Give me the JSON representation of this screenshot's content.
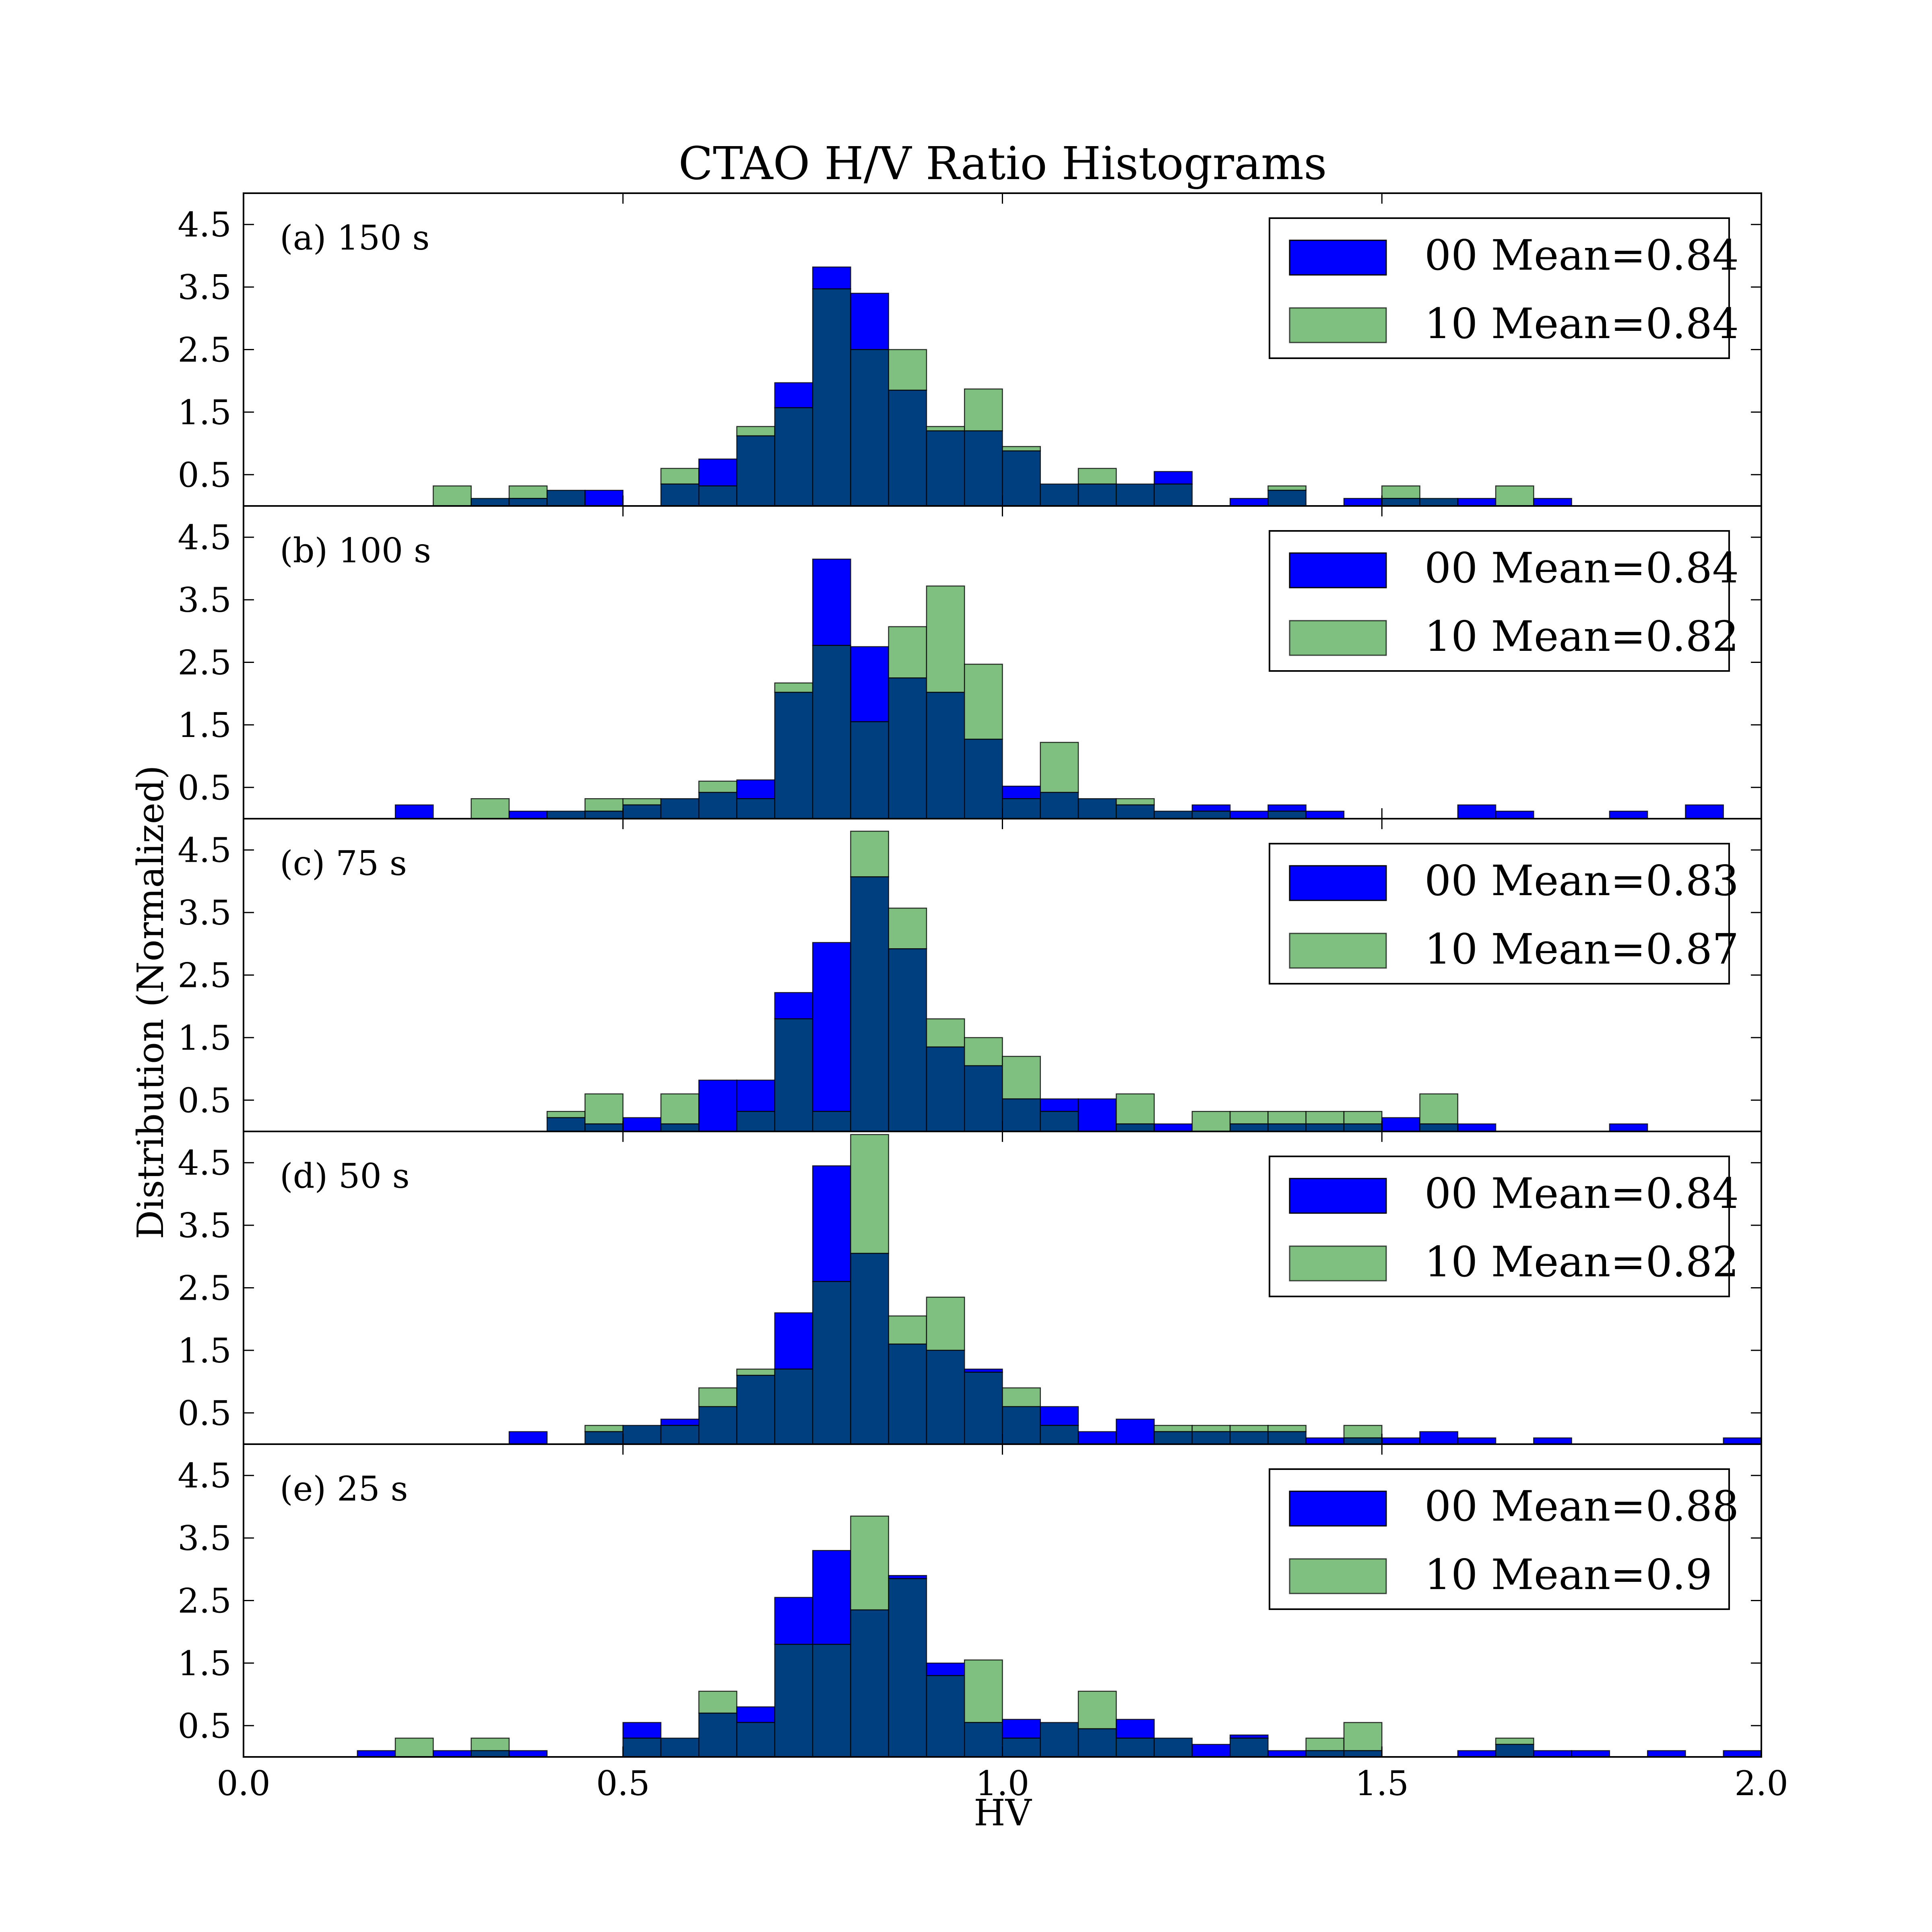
{
  "figure": {
    "title": "CTAO H/V Ratio Histograms",
    "xlabel": "HV",
    "ylabel": "Distribution (Normalized)"
  },
  "colors": {
    "series_00": "#0000ff",
    "series_10": "#7fbf7f",
    "overlap": "#003f7f",
    "edge": "#000000",
    "background": "#ffffff"
  },
  "chart_data": {
    "type": "bar",
    "subtype": "overlaid-histogram",
    "xlim": [
      0.0,
      2.0
    ],
    "ylim": [
      0,
      5
    ],
    "x_ticks": [
      "0.0",
      "0.5",
      "1.0",
      "1.5",
      "2.0"
    ],
    "y_ticks": [
      "0.5",
      "1.5",
      "2.5",
      "3.5",
      "4.5"
    ],
    "bin_width": 0.05,
    "bin_start": 0.0,
    "series_names": [
      "00",
      "10"
    ],
    "panels": [
      {
        "label": "(a) 150 s",
        "legend": [
          "00 Mean=0.84",
          "10 Mean=0.84"
        ],
        "series": [
          {
            "name": "00",
            "values": [
              0,
              0,
              0,
              0,
              0,
              0,
              0.12,
              0.12,
              0.25,
              0.25,
              0,
              0.35,
              0.75,
              1.12,
              1.97,
              3.82,
              3.4,
              1.85,
              1.2,
              1.2,
              0.88,
              0.35,
              0.35,
              0.35,
              0.55,
              0,
              0.12,
              0.25,
              0,
              0.12,
              0.12,
              0.12,
              0.12,
              0,
              0.12,
              0,
              0,
              0,
              0,
              0
            ]
          },
          {
            "name": "10",
            "values": [
              0,
              0,
              0,
              0,
              0,
              0.32,
              0.12,
              0.32,
              0.25,
              0,
              0,
              0.6,
              0.32,
              1.27,
              1.57,
              3.47,
              2.5,
              2.5,
              1.27,
              1.87,
              0.95,
              0.35,
              0.6,
              0.35,
              0.35,
              0,
              0,
              0.32,
              0,
              0,
              0.32,
              0.12,
              0,
              0.32,
              0,
              0,
              0,
              0,
              0,
              0
            ]
          }
        ]
      },
      {
        "label": "(b) 100 s",
        "legend": [
          "00 Mean=0.84",
          "10 Mean=0.82"
        ],
        "series": [
          {
            "name": "00",
            "values": [
              0,
              0,
              0,
              0,
              0.22,
              0,
              0,
              0.12,
              0.12,
              0.12,
              0.22,
              0.32,
              0.42,
              0.62,
              2.02,
              4.15,
              2.75,
              2.25,
              2.02,
              1.27,
              0.52,
              0.42,
              0.32,
              0.22,
              0.12,
              0.22,
              0.12,
              0.22,
              0.12,
              0,
              0,
              0,
              0.22,
              0.12,
              0,
              0,
              0.12,
              0,
              0.22,
              0
            ]
          },
          {
            "name": "10",
            "values": [
              0,
              0,
              0,
              0,
              0,
              0,
              0.32,
              0,
              0.12,
              0.32,
              0.32,
              0.32,
              0.6,
              0.32,
              2.17,
              2.77,
              1.55,
              3.07,
              3.72,
              2.47,
              0.32,
              1.22,
              0.32,
              0.32,
              0.12,
              0.12,
              0,
              0.12,
              0,
              0,
              0,
              0,
              0,
              0,
              0,
              0,
              0,
              0,
              0,
              0
            ]
          }
        ]
      },
      {
        "label": "(c) 75 s",
        "legend": [
          "00 Mean=0.83",
          "10 Mean=0.87"
        ],
        "series": [
          {
            "name": "00",
            "values": [
              0,
              0,
              0,
              0,
              0,
              0,
              0,
              0,
              0.22,
              0.12,
              0.22,
              0.12,
              0.82,
              0.82,
              2.22,
              3.02,
              4.07,
              2.92,
              1.35,
              1.05,
              0.52,
              0.52,
              0.52,
              0.12,
              0.12,
              0,
              0.12,
              0.12,
              0.12,
              0.12,
              0.22,
              0.12,
              0.12,
              0,
              0,
              0,
              0.12,
              0,
              0,
              0
            ]
          },
          {
            "name": "10",
            "values": [
              0,
              0,
              0,
              0,
              0,
              0,
              0,
              0,
              0.32,
              0.6,
              0,
              0.6,
              0,
              0.32,
              1.8,
              0.32,
              4.8,
              3.57,
              1.8,
              1.5,
              1.2,
              0.32,
              0,
              0.6,
              0,
              0.32,
              0.32,
              0.32,
              0.32,
              0.32,
              0,
              0.6,
              0,
              0,
              0,
              0,
              0,
              0,
              0,
              0
            ]
          }
        ]
      },
      {
        "label": "(d) 50 s",
        "legend": [
          "00 Mean=0.84",
          "10 Mean=0.82"
        ],
        "series": [
          {
            "name": "00",
            "values": [
              0,
              0,
              0,
              0,
              0,
              0,
              0,
              0.2,
              0,
              0.2,
              0.3,
              0.4,
              0.6,
              1.1,
              2.1,
              4.45,
              3.05,
              1.6,
              1.5,
              1.2,
              0.6,
              0.6,
              0.2,
              0.4,
              0.2,
              0.2,
              0.2,
              0.2,
              0.1,
              0.1,
              0.1,
              0.2,
              0.1,
              0,
              0.1,
              0,
              0,
              0,
              0,
              0.1
            ]
          },
          {
            "name": "10",
            "values": [
              0,
              0,
              0,
              0,
              0,
              0,
              0,
              0,
              0,
              0.3,
              0.3,
              0.3,
              0.9,
              1.2,
              1.2,
              2.6,
              4.95,
              2.05,
              2.35,
              1.15,
              0.9,
              0.3,
              0,
              0,
              0.3,
              0.3,
              0.3,
              0.3,
              0,
              0.3,
              0,
              0,
              0,
              0,
              0,
              0,
              0,
              0,
              0,
              0
            ]
          }
        ]
      },
      {
        "label": "(e) 25 s",
        "legend": [
          "00 Mean=0.88",
          "10 Mean=0.9"
        ],
        "series": [
          {
            "name": "00",
            "values": [
              0,
              0,
              0,
              0.1,
              0,
              0.1,
              0.1,
              0.1,
              0,
              0,
              0.55,
              0.3,
              0.7,
              0.8,
              2.55,
              3.3,
              2.35,
              2.9,
              1.5,
              0.55,
              0.6,
              0.55,
              0.45,
              0.6,
              0.3,
              0.2,
              0.35,
              0.1,
              0.1,
              0.1,
              0,
              0,
              0.1,
              0.2,
              0.1,
              0.1,
              0,
              0.1,
              0,
              0.1
            ]
          },
          {
            "name": "10",
            "values": [
              0,
              0,
              0,
              0,
              0.3,
              0,
              0.3,
              0,
              0,
              0,
              0.3,
              0.3,
              1.05,
              0.55,
              1.8,
              1.8,
              3.85,
              2.85,
              1.3,
              1.55,
              0.3,
              0.55,
              1.05,
              0.3,
              0.3,
              0,
              0.3,
              0,
              0.3,
              0.55,
              0,
              0,
              0,
              0.3,
              0,
              0,
              0,
              0,
              0,
              0
            ]
          }
        ]
      }
    ]
  }
}
